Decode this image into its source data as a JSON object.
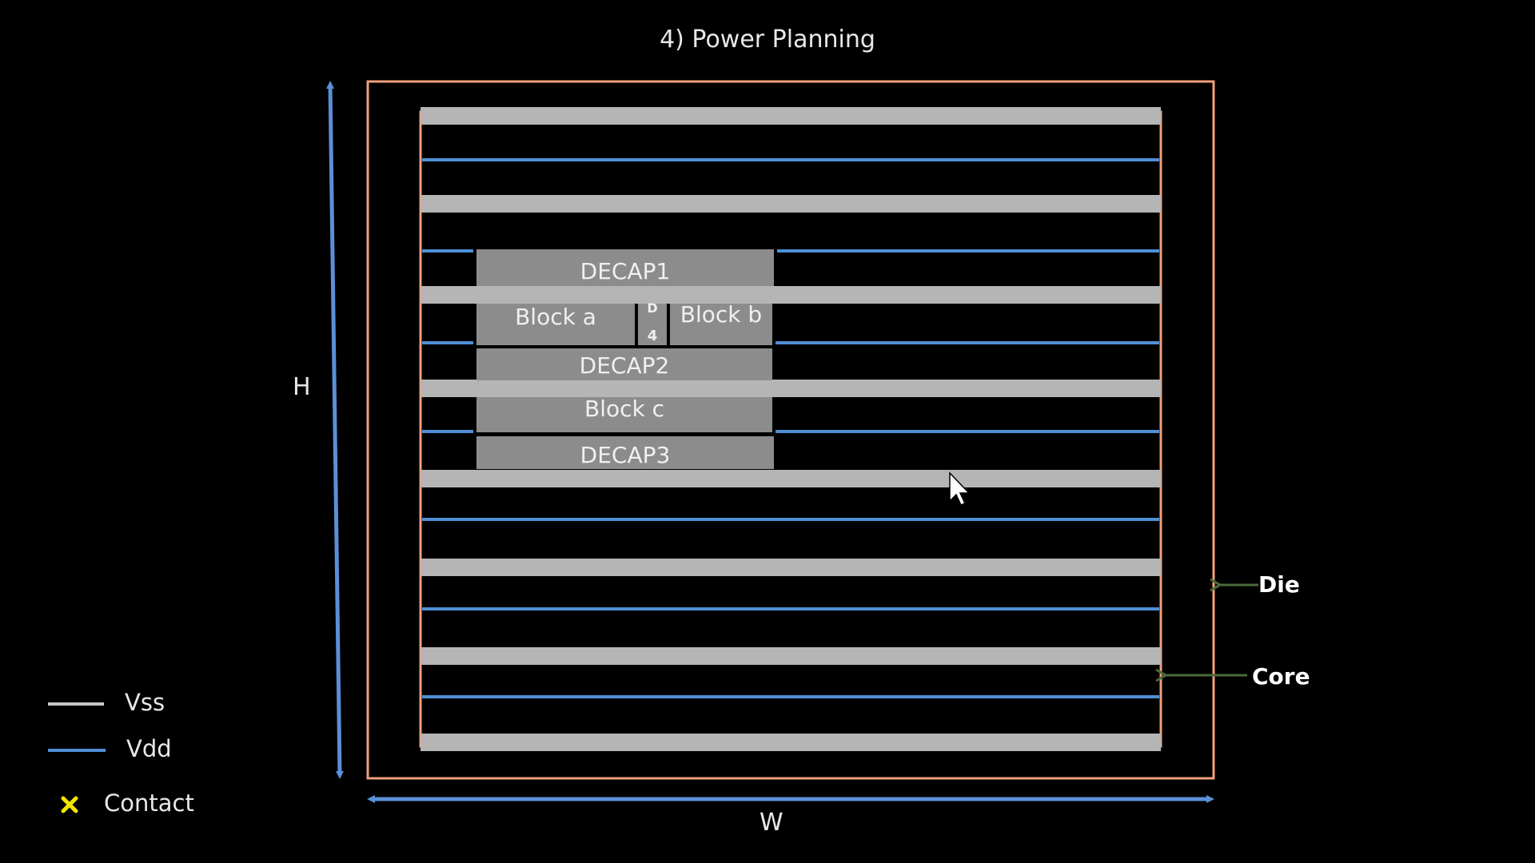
{
  "title": "4) Power Planning",
  "dimensions": {
    "height_label": "H",
    "width_label": "W"
  },
  "blocks": {
    "decap1": "DECAP1",
    "decap2": "DECAP2",
    "decap3": "DECAP3",
    "decap4_top": "D",
    "decap4_bottom": "4",
    "block_a": "Block a",
    "block_b": "Block b",
    "block_c": "Block c"
  },
  "callouts": {
    "die": "Die",
    "core": "Core"
  },
  "legend": [
    {
      "label": "Vss",
      "symbol": "line",
      "color": "#c8c8c8"
    },
    {
      "label": "Vdd",
      "symbol": "line",
      "color": "#4f8fd6"
    },
    {
      "label": "Contact",
      "symbol": "cross",
      "color": "#f2e600"
    }
  ],
  "colors": {
    "die_border": "#f0a07a",
    "vss_rail": "#b5b5b5",
    "vdd_rail": "#4f8fd6",
    "block_fill": "#8c8c8c",
    "dimension_arrow": "#5b8fd8",
    "callout_arrow": "#4a6a3a",
    "contact": "#f2e600"
  }
}
